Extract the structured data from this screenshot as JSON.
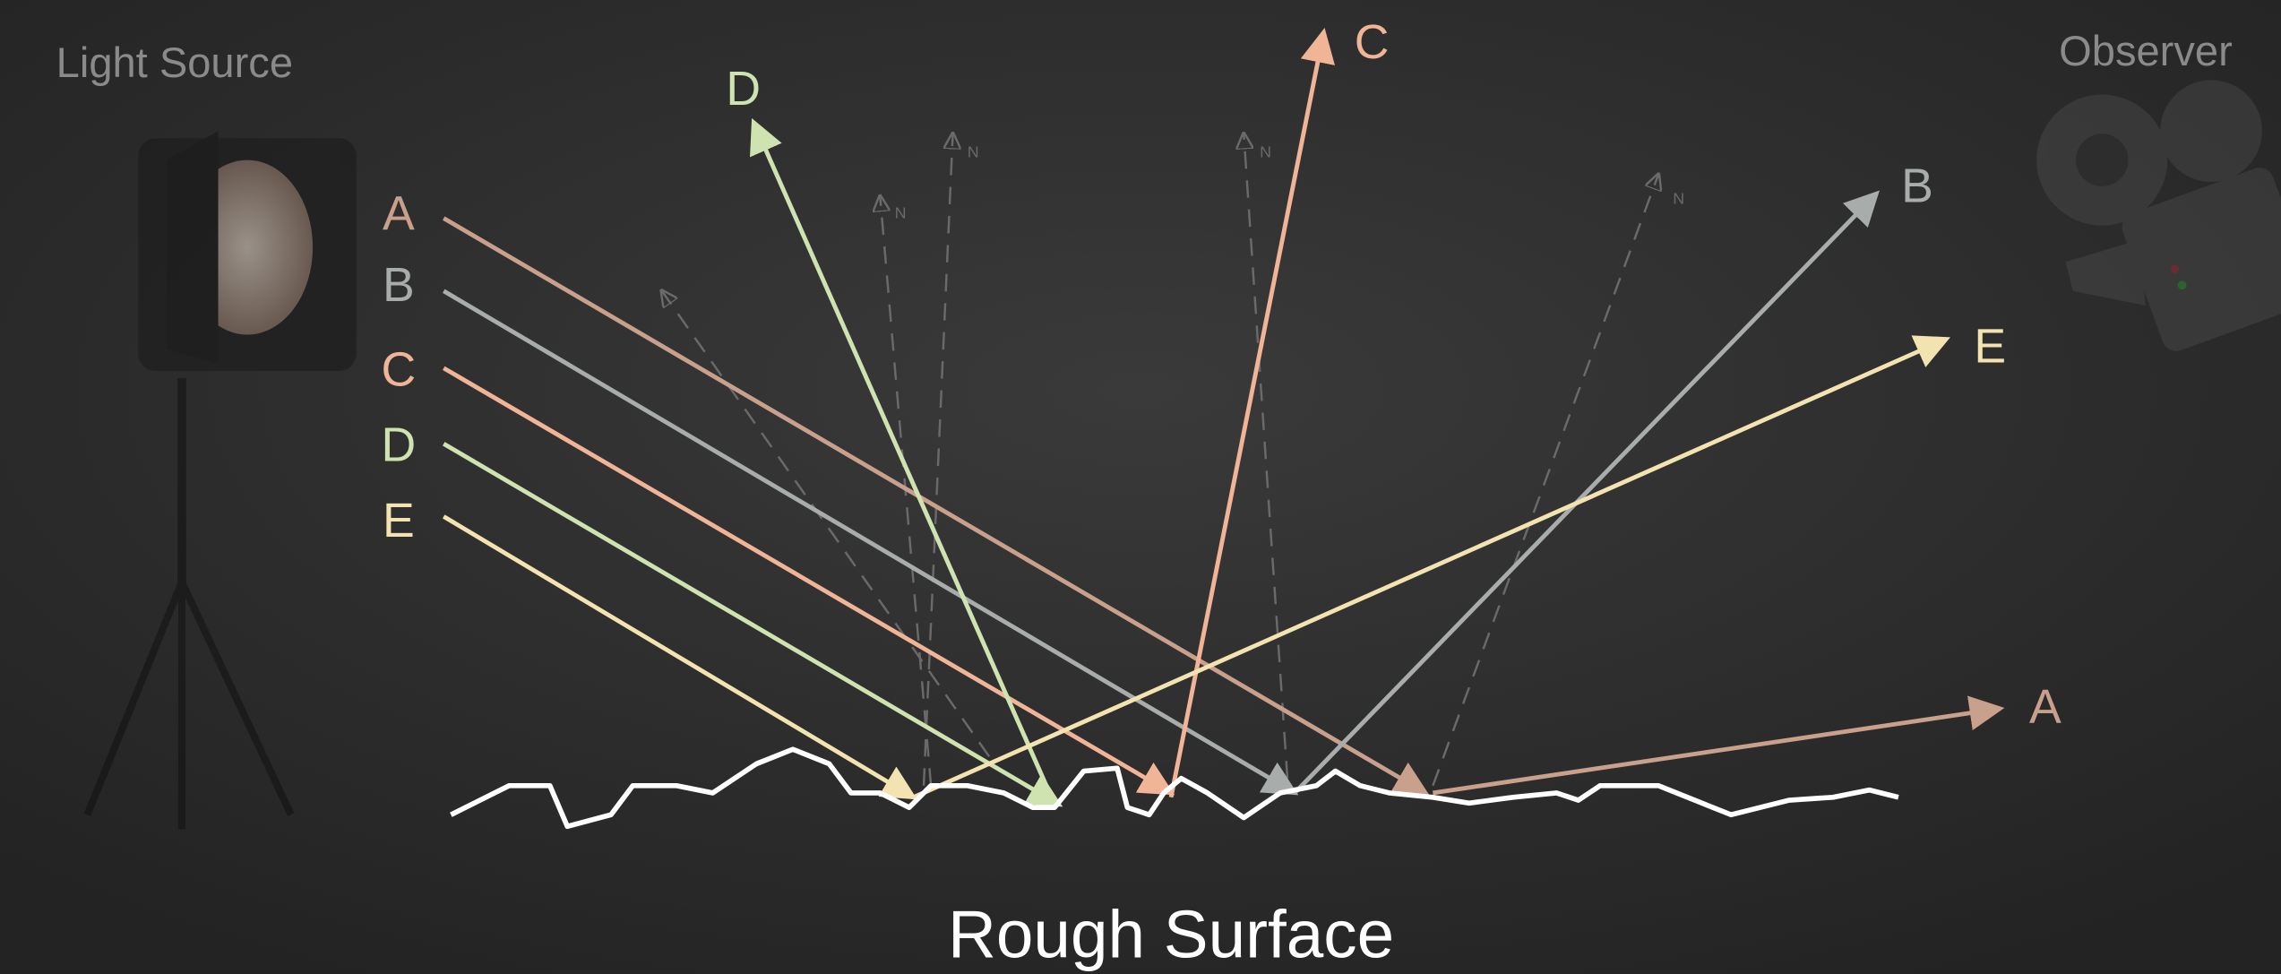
{
  "header": {
    "light_source": "Light Source",
    "observer": "Observer"
  },
  "incoming": {
    "labels": [
      "A",
      "B",
      "C",
      "D",
      "E"
    ]
  },
  "reflected": {
    "labels": [
      "D",
      "C",
      "B",
      "E",
      "A"
    ]
  },
  "normals": {
    "labels": [
      "N",
      "N",
      "N",
      "N"
    ]
  },
  "caption": "Rough Surface"
}
